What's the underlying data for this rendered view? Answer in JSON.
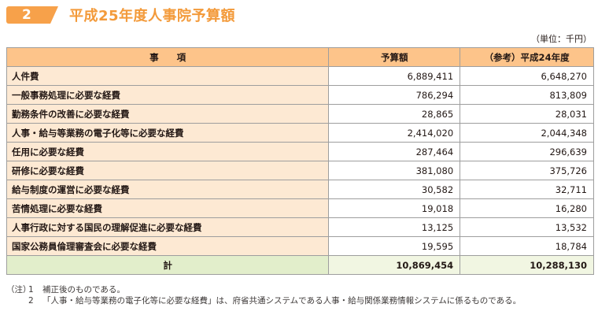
{
  "header": {
    "section_number": "2",
    "title": "平成25年度人事院予算額",
    "unit": "（単位：千円）"
  },
  "table": {
    "columns": [
      "事　　項",
      "予算額",
      "（参考）平成24年度"
    ],
    "rows": [
      {
        "item": "人件費",
        "budget": "6,889,411",
        "prev": "6,648,270"
      },
      {
        "item": "一般事務処理に必要な経費",
        "budget": "786,294",
        "prev": "813,809"
      },
      {
        "item": "勤務条件の改善に必要な経費",
        "budget": "28,865",
        "prev": "28,031"
      },
      {
        "item": "人事・給与等業務の電子化等に必要な経費",
        "budget": "2,414,020",
        "prev": "2,044,348"
      },
      {
        "item": "任用に必要な経費",
        "budget": "287,464",
        "prev": "296,639"
      },
      {
        "item": "研修に必要な経費",
        "budget": "381,080",
        "prev": "375,726"
      },
      {
        "item": "給与制度の運営に必要な経費",
        "budget": "30,582",
        "prev": "32,711"
      },
      {
        "item": "苦情処理に必要な経費",
        "budget": "19,018",
        "prev": "16,280"
      },
      {
        "item": "人事行政に対する国民の理解促進に必要な経費",
        "budget": "13,125",
        "prev": "13,532"
      },
      {
        "item": "国家公務員倫理審査会に必要な経費",
        "budget": "19,595",
        "prev": "18,784"
      }
    ],
    "total": {
      "item": "計",
      "budget": "10,869,454",
      "prev": "10,288,130"
    }
  },
  "notes": {
    "prefix": "（注）",
    "items": [
      {
        "num": "1",
        "text": "補正後のものである。"
      },
      {
        "num": "2",
        "text": "「人事・給与等業務の電子化等に必要な経費」は、府省共通システムである人事・給与関係業務情報システムに係るものである。"
      }
    ]
  },
  "colors": {
    "accent": "#f7a14a",
    "header_bg": "#fdc48a",
    "item_bg": "#fde9d3",
    "total_bg": "#e2eecb"
  }
}
